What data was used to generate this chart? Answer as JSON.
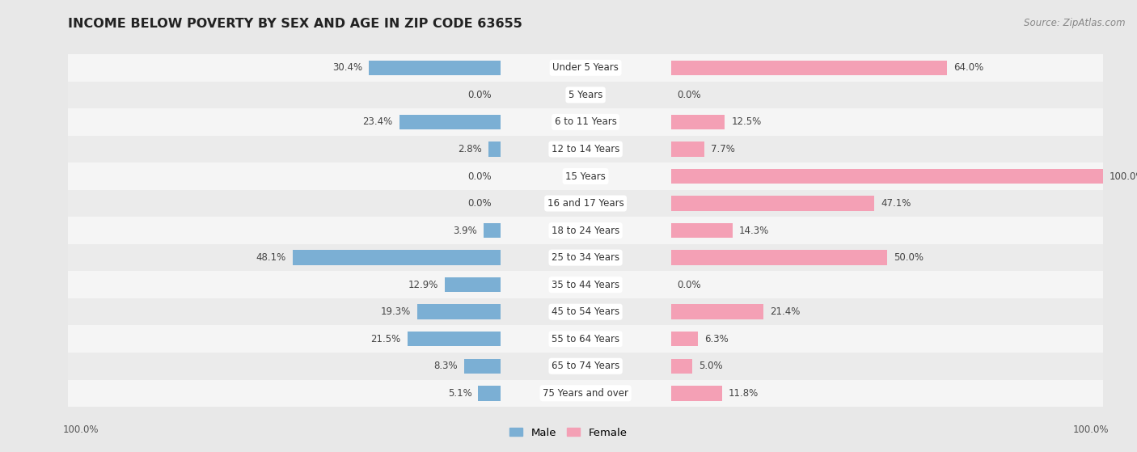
{
  "title": "INCOME BELOW POVERTY BY SEX AND AGE IN ZIP CODE 63655",
  "source": "Source: ZipAtlas.com",
  "categories": [
    "Under 5 Years",
    "5 Years",
    "6 to 11 Years",
    "12 to 14 Years",
    "15 Years",
    "16 and 17 Years",
    "18 to 24 Years",
    "25 to 34 Years",
    "35 to 44 Years",
    "45 to 54 Years",
    "55 to 64 Years",
    "65 to 74 Years",
    "75 Years and over"
  ],
  "male_values": [
    30.4,
    0.0,
    23.4,
    2.8,
    0.0,
    0.0,
    3.9,
    48.1,
    12.9,
    19.3,
    21.5,
    8.3,
    5.1
  ],
  "female_values": [
    64.0,
    0.0,
    12.5,
    7.7,
    100.0,
    47.1,
    14.3,
    50.0,
    0.0,
    21.4,
    6.3,
    5.0,
    11.8
  ],
  "male_color": "#7bafd4",
  "female_color": "#f4a0b5",
  "male_label": "Male",
  "female_label": "Female",
  "bg_color": "#e8e8e8",
  "row_color_even": "#f5f5f5",
  "row_color_odd": "#ebebeb",
  "title_fontsize": 11.5,
  "source_fontsize": 8.5,
  "label_fontsize": 8.5,
  "cat_fontsize": 8.5,
  "axis_max": 100
}
